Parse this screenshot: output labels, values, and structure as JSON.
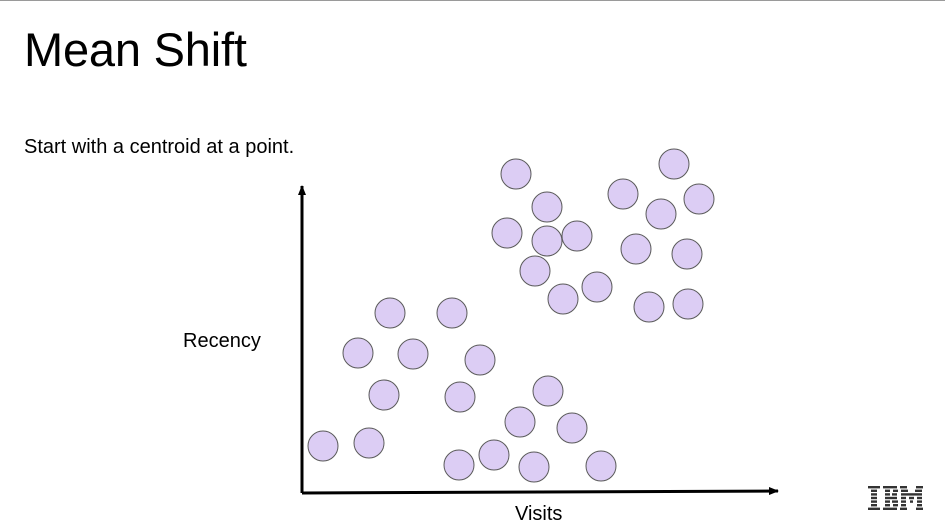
{
  "slide": {
    "title": "Mean Shift",
    "subtitle": "Start with a centroid at a point.",
    "logo_text": "IBM"
  },
  "axes": {
    "x_label": "Visits",
    "y_label": "Recency"
  },
  "colors": {
    "point_fill": "#dccdf4",
    "point_stroke": "#5a5a5a",
    "axis": "#000000",
    "top_rule": "#9a9a9a"
  },
  "points": [
    {
      "visits": 516,
      "recency": 174
    },
    {
      "visits": 674,
      "recency": 164
    },
    {
      "visits": 623,
      "recency": 194
    },
    {
      "visits": 699,
      "recency": 199
    },
    {
      "visits": 547,
      "recency": 207
    },
    {
      "visits": 661,
      "recency": 214
    },
    {
      "visits": 507,
      "recency": 233
    },
    {
      "visits": 577,
      "recency": 236
    },
    {
      "visits": 547,
      "recency": 241
    },
    {
      "visits": 636,
      "recency": 249
    },
    {
      "visits": 687,
      "recency": 254
    },
    {
      "visits": 535,
      "recency": 271
    },
    {
      "visits": 597,
      "recency": 287
    },
    {
      "visits": 563,
      "recency": 299
    },
    {
      "visits": 649,
      "recency": 307
    },
    {
      "visits": 688,
      "recency": 304
    },
    {
      "visits": 390,
      "recency": 313
    },
    {
      "visits": 452,
      "recency": 313
    },
    {
      "visits": 358,
      "recency": 353
    },
    {
      "visits": 413,
      "recency": 354
    },
    {
      "visits": 480,
      "recency": 360
    },
    {
      "visits": 384,
      "recency": 395
    },
    {
      "visits": 460,
      "recency": 397
    },
    {
      "visits": 548,
      "recency": 391
    },
    {
      "visits": 520,
      "recency": 422
    },
    {
      "visits": 572,
      "recency": 428
    },
    {
      "visits": 323,
      "recency": 446
    },
    {
      "visits": 369,
      "recency": 443
    },
    {
      "visits": 494,
      "recency": 455
    },
    {
      "visits": 459,
      "recency": 465
    },
    {
      "visits": 534,
      "recency": 467
    },
    {
      "visits": 601,
      "recency": 466
    }
  ]
}
